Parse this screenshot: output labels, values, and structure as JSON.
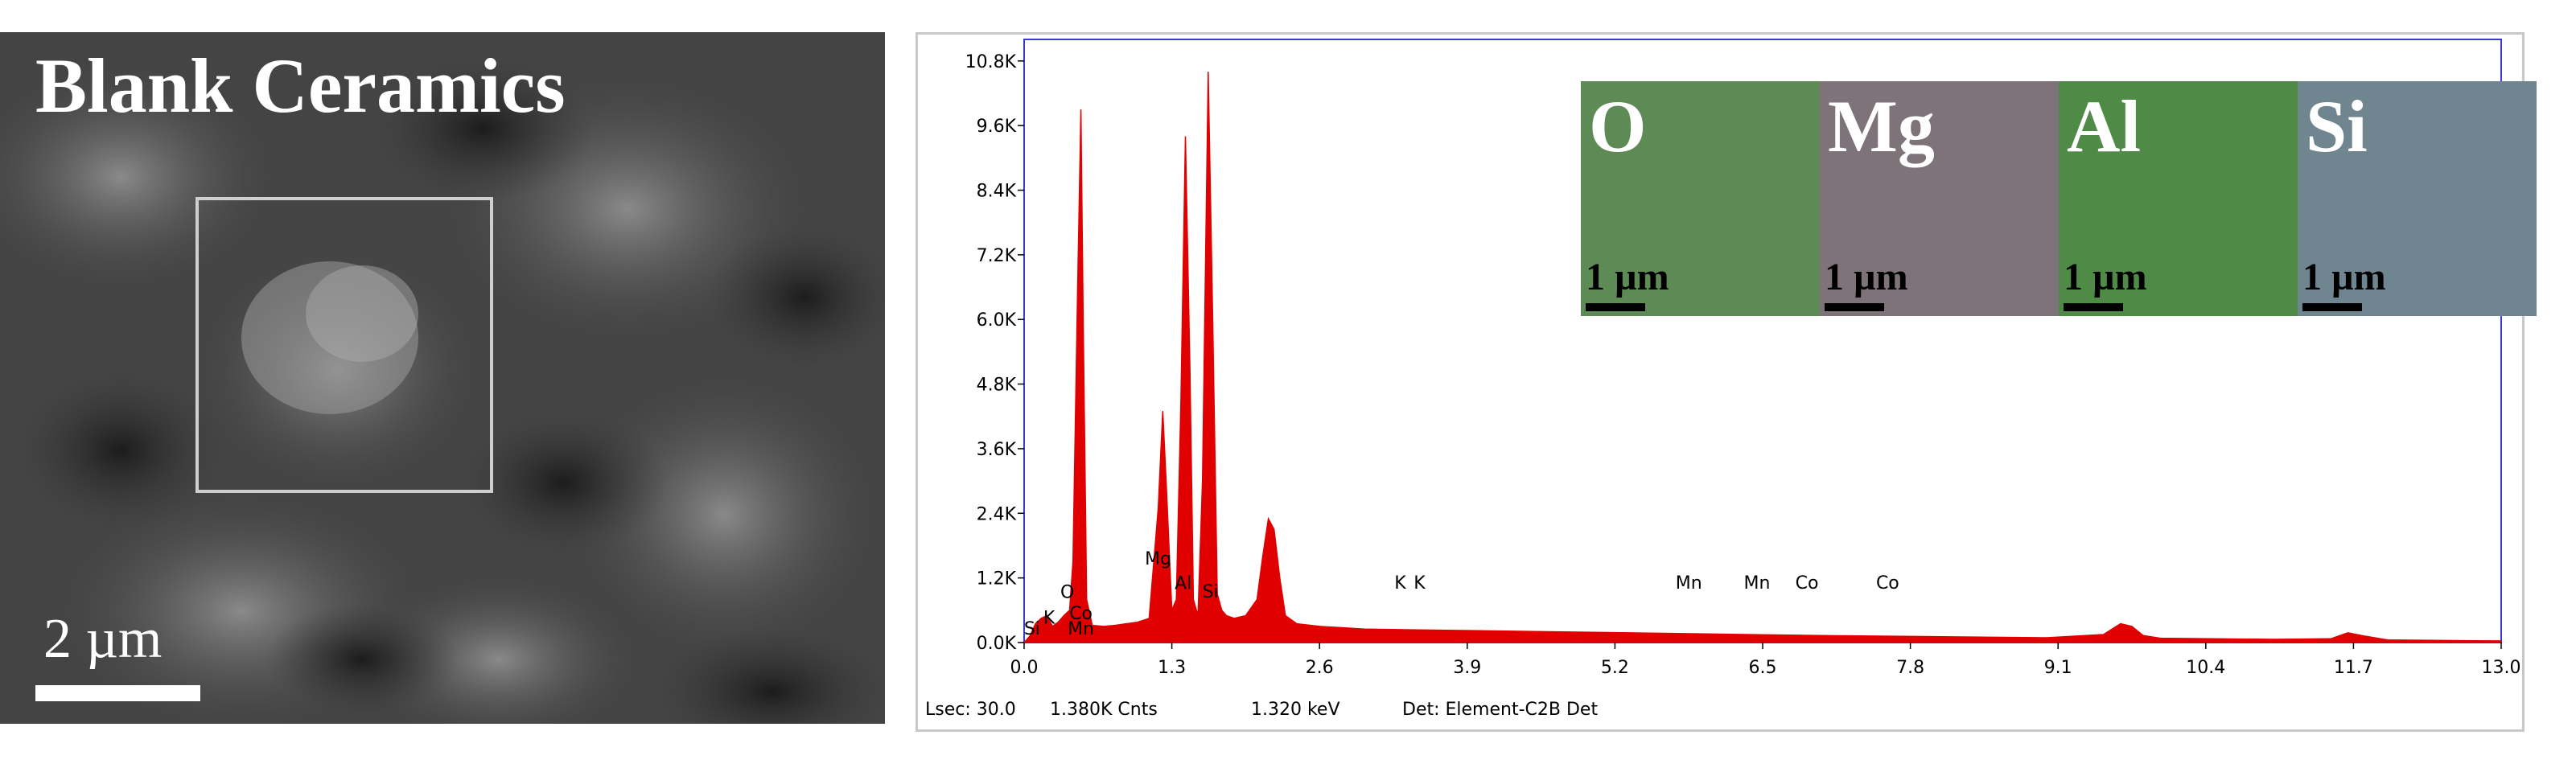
{
  "sem": {
    "title": "Blank Ceramics",
    "scale_label": "2 µm",
    "colors": {
      "background": "#3b3b3b",
      "text": "#ffffff",
      "box": "#cfcfcf"
    }
  },
  "eds": {
    "status": {
      "lsec": "Lsec: 30.0",
      "counts": "1.380K Cnts",
      "energy": "1.320 keV",
      "detector": "Det: Element-C2B Det"
    },
    "maps": [
      {
        "element": "O",
        "scale": "1 µm",
        "color": "#5e8a55"
      },
      {
        "element": "Mg",
        "scale": "1 µm",
        "color": "#7d7378"
      },
      {
        "element": "Al",
        "scale": "1 µm",
        "color": "#4f8a47"
      },
      {
        "element": "Si",
        "scale": "1 µm",
        "color": "#6f8590"
      }
    ]
  },
  "chart_data": {
    "type": "area",
    "title": "",
    "xlabel": "",
    "ylabel": "",
    "xlim": [
      0.0,
      13.0
    ],
    "ylim": [
      0,
      11200
    ],
    "x_ticks": [
      "0.0",
      "1.3",
      "2.6",
      "3.9",
      "5.2",
      "6.5",
      "7.8",
      "9.1",
      "10.4",
      "11.7",
      "13.0"
    ],
    "y_ticks": [
      "0.0K",
      "1.2K",
      "2.4K",
      "3.6K",
      "4.8K",
      "6.0K",
      "7.2K",
      "8.4K",
      "9.6K",
      "10.8K"
    ],
    "grid": false,
    "series": [
      {
        "color": "#e00000",
        "x": [
          0.0,
          0.05,
          0.1,
          0.15,
          0.2,
          0.25,
          0.3,
          0.35,
          0.4,
          0.43,
          0.47,
          0.5,
          0.52,
          0.55,
          0.6,
          0.7,
          0.8,
          0.9,
          1.0,
          1.1,
          1.18,
          1.22,
          1.25,
          1.3,
          1.34,
          1.38,
          1.42,
          1.46,
          1.49,
          1.53,
          1.57,
          1.62,
          1.66,
          1.7,
          1.74,
          1.78,
          1.85,
          1.95,
          2.05,
          2.1,
          2.15,
          2.2,
          2.25,
          2.3,
          2.4,
          2.6,
          3.0,
          4.0,
          5.0,
          6.0,
          7.0,
          8.0,
          9.0,
          9.5,
          9.65,
          9.75,
          9.85,
          10.0,
          11.0,
          11.5,
          11.65,
          11.8,
          12.0,
          13.0
        ],
        "y": [
          0,
          120,
          350,
          450,
          500,
          300,
          380,
          500,
          600,
          1500,
          6500,
          9900,
          6000,
          800,
          320,
          300,
          320,
          350,
          380,
          450,
          2500,
          4300,
          3000,
          600,
          800,
          4500,
          9400,
          5000,
          800,
          500,
          3000,
          10600,
          6000,
          900,
          600,
          500,
          450,
          500,
          800,
          1600,
          2300,
          2100,
          1200,
          500,
          350,
          300,
          250,
          220,
          190,
          160,
          130,
          110,
          90,
          150,
          350,
          300,
          130,
          80,
          60,
          70,
          180,
          120,
          50,
          30
        ]
      }
    ],
    "peak_labels": [
      {
        "label": "Si",
        "x": 0.07,
        "y": 150
      },
      {
        "label": "K",
        "x": 0.22,
        "y": 350
      },
      {
        "label": "Mn",
        "x": 0.5,
        "y": 150
      },
      {
        "label": "Co",
        "x": 0.5,
        "y": 430
      },
      {
        "label": "O",
        "x": 0.38,
        "y": 830
      },
      {
        "label": "Mg",
        "x": 1.18,
        "y": 1450
      },
      {
        "label": "Al",
        "x": 1.4,
        "y": 990
      },
      {
        "label": "Si",
        "x": 1.64,
        "y": 840
      },
      {
        "label": "K",
        "x": 3.31,
        "y": 1000
      },
      {
        "label": "K",
        "x": 3.48,
        "y": 1000
      },
      {
        "label": "Mn",
        "x": 5.85,
        "y": 1000
      },
      {
        "label": "Mn",
        "x": 6.45,
        "y": 1000
      },
      {
        "label": "Co",
        "x": 6.89,
        "y": 1000
      },
      {
        "label": "Co",
        "x": 7.6,
        "y": 1000
      }
    ]
  }
}
